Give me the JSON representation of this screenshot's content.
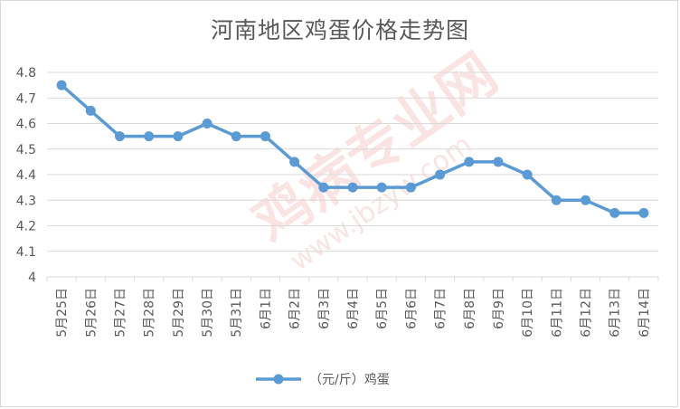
{
  "chart_data": {
    "type": "line",
    "title": "河南地区鸡蛋价格走势图",
    "categories": [
      "5月25日",
      "5月26日",
      "5月27日",
      "5月28日",
      "5月29日",
      "5月30日",
      "5月31日",
      "6月1日",
      "6月2日",
      "6月3日",
      "6月4日",
      "6月5日",
      "6月6日",
      "6月7日",
      "6月8日",
      "6月9日",
      "6月10日",
      "6月11日",
      "6月12日",
      "6月13日",
      "6月14日"
    ],
    "series": [
      {
        "name": "（元/斤）鸡蛋",
        "values": [
          4.75,
          4.65,
          4.55,
          4.55,
          4.55,
          4.6,
          4.55,
          4.55,
          4.45,
          4.35,
          4.35,
          4.35,
          4.35,
          4.4,
          4.45,
          4.45,
          4.4,
          4.3,
          4.3,
          4.25,
          4.25
        ]
      }
    ],
    "ylim": [
      4,
      4.8
    ],
    "yticks": [
      "4",
      "4.1",
      "4.2",
      "4.3",
      "4.4",
      "4.5",
      "4.6",
      "4.7",
      "4.8"
    ],
    "grid": true,
    "legend": "bottom",
    "colors": {
      "line": "#5b9bd5",
      "grid": "#d9d9d9",
      "text": "#595959"
    }
  },
  "watermark": {
    "brand": "鸡病专业网",
    "url": "www.jbzyw.com"
  }
}
